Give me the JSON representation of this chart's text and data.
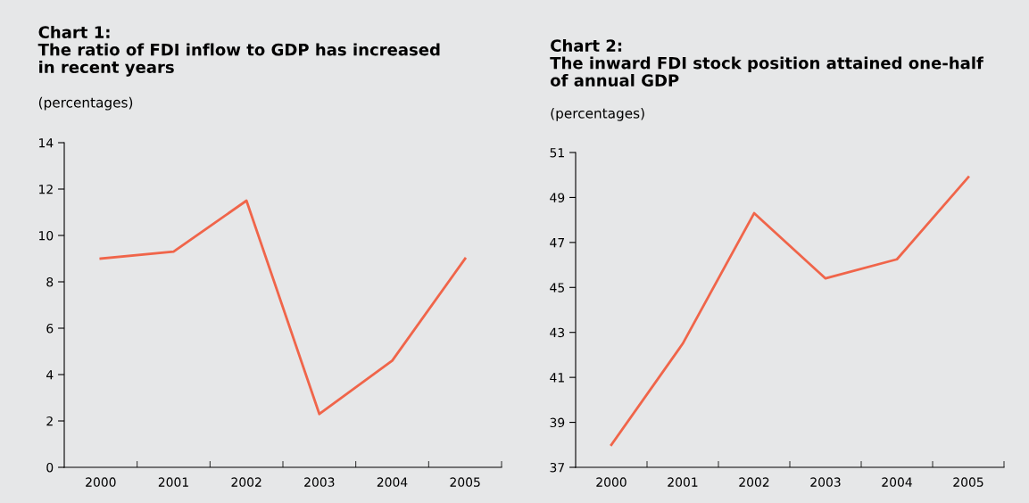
{
  "chart_data": [
    {
      "type": "line",
      "title": "Chart 1:\nThe ratio of FDI inflow to GDP has increased\nin recent years",
      "ylabel": "(percentages)",
      "categories": [
        "2000",
        "2001",
        "2002",
        "2003",
        "2004",
        "2005"
      ],
      "series": [
        {
          "color": "#f0654a",
          "values": [
            9.0,
            9.3,
            11.5,
            2.3,
            4.6,
            9.0
          ]
        }
      ],
      "ylim": [
        0,
        14
      ],
      "yticks": [
        0,
        2,
        4,
        6,
        8,
        10,
        12,
        14
      ],
      "grid": false,
      "legend": false,
      "marker": "none",
      "line_style": "solid"
    },
    {
      "type": "line",
      "title": "Chart 2:\nThe inward FDI stock position attained one-half\nof annual GDP",
      "ylabel": "(percentages)",
      "categories": [
        "2000",
        "2001",
        "2002",
        "2003",
        "2004",
        "2005"
      ],
      "series": [
        {
          "color": "#f0654a",
          "values": [
            38.0,
            42.5,
            48.3,
            45.4,
            46.25,
            49.9
          ]
        }
      ],
      "ylim": [
        37,
        51
      ],
      "yticks": [
        37,
        39,
        41,
        43,
        45,
        47,
        49,
        51
      ],
      "grid": false,
      "legend": false,
      "marker": "none",
      "line_style": "solid"
    }
  ]
}
